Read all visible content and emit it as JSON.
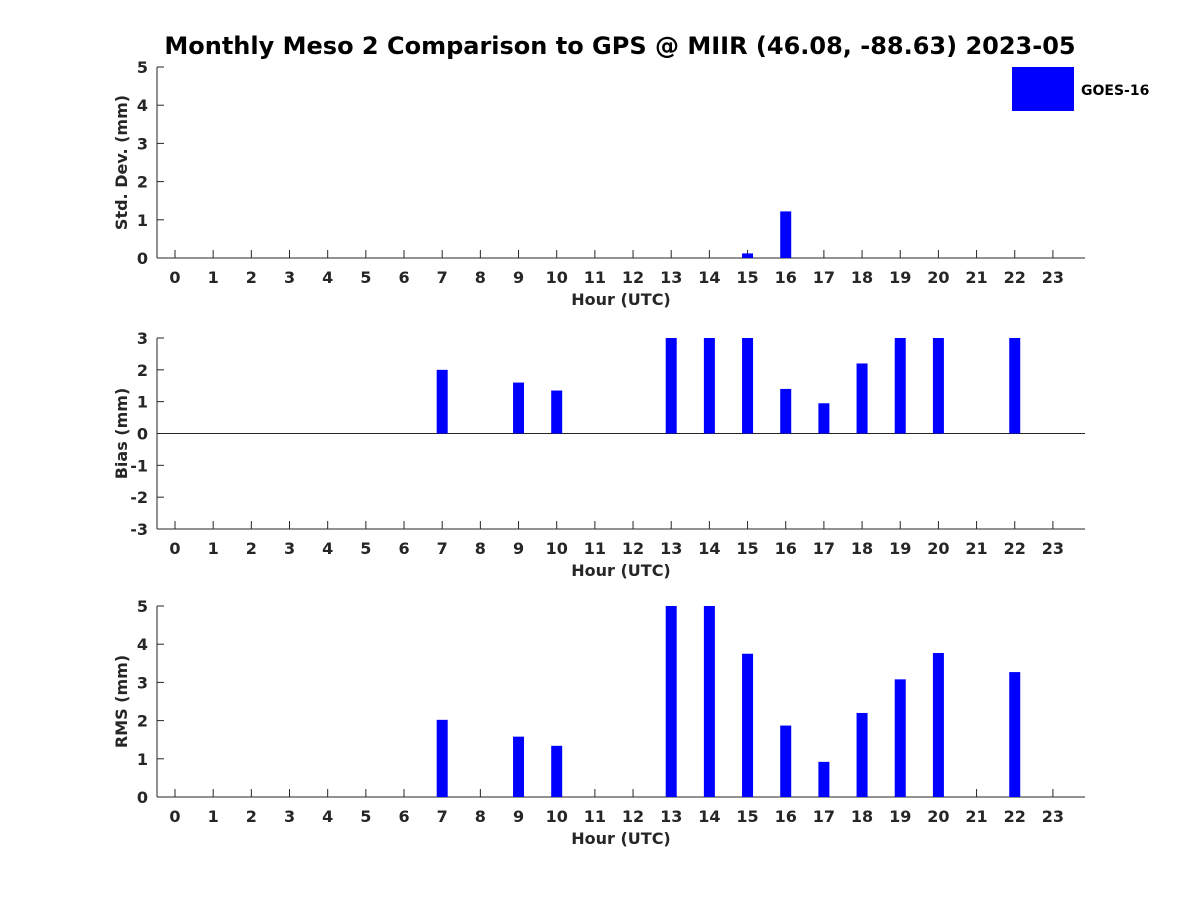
{
  "title": "Monthly Meso 2 Comparison to GPS @ MIIR (46.08, -88.63) 2023-05",
  "legend": {
    "label": "GOES-16",
    "color": "#0000ff"
  },
  "bar_color": "#0000ff",
  "chart_data": [
    {
      "type": "bar",
      "name": "stddev",
      "title": "Monthly Meso 2 Comparison to GPS @ MIIR (46.08, -88.63) 2023-05",
      "xlabel": "Hour (UTC)",
      "ylabel": "Std. Dev. (mm)",
      "ylim": [
        0,
        5
      ],
      "yticks": [
        0,
        1,
        2,
        3,
        4,
        5
      ],
      "categories": [
        0,
        1,
        2,
        3,
        4,
        5,
        6,
        7,
        8,
        9,
        10,
        11,
        12,
        13,
        14,
        15,
        16,
        17,
        18,
        19,
        20,
        21,
        22,
        23
      ],
      "series": [
        {
          "name": "GOES-16",
          "values": [
            0,
            0,
            0,
            0,
            0,
            0,
            0,
            0,
            0,
            0,
            0,
            0,
            0,
            0,
            0,
            0.12,
            1.22,
            0,
            0,
            0,
            0,
            0,
            0,
            0
          ]
        }
      ]
    },
    {
      "type": "bar",
      "name": "bias",
      "xlabel": "Hour (UTC)",
      "ylabel": "Bias (mm)",
      "ylim": [
        -3,
        3
      ],
      "yticks": [
        -3,
        -2,
        -1,
        0,
        1,
        2,
        3
      ],
      "zero_line": true,
      "categories": [
        0,
        1,
        2,
        3,
        4,
        5,
        6,
        7,
        8,
        9,
        10,
        11,
        12,
        13,
        14,
        15,
        16,
        17,
        18,
        19,
        20,
        21,
        22,
        23
      ],
      "series": [
        {
          "name": "GOES-16",
          "values": [
            0,
            0,
            0,
            0,
            0,
            0,
            0,
            2.0,
            0,
            1.6,
            1.35,
            0,
            0,
            3.0,
            3.0,
            3.0,
            1.4,
            0.95,
            2.2,
            3.0,
            3.0,
            0,
            3.0,
            0
          ]
        }
      ]
    },
    {
      "type": "bar",
      "name": "rms",
      "xlabel": "Hour (UTC)",
      "ylabel": "RMS (mm)",
      "ylim": [
        0,
        5
      ],
      "yticks": [
        0,
        1,
        2,
        3,
        4,
        5
      ],
      "categories": [
        0,
        1,
        2,
        3,
        4,
        5,
        6,
        7,
        8,
        9,
        10,
        11,
        12,
        13,
        14,
        15,
        16,
        17,
        18,
        19,
        20,
        21,
        22,
        23
      ],
      "series": [
        {
          "name": "GOES-16",
          "values": [
            0,
            0,
            0,
            0,
            0,
            0,
            0,
            2.02,
            0,
            1.58,
            1.34,
            0,
            0,
            5.0,
            5.0,
            3.75,
            1.87,
            0.92,
            2.2,
            3.08,
            3.77,
            0,
            3.27,
            0
          ]
        }
      ]
    }
  ]
}
